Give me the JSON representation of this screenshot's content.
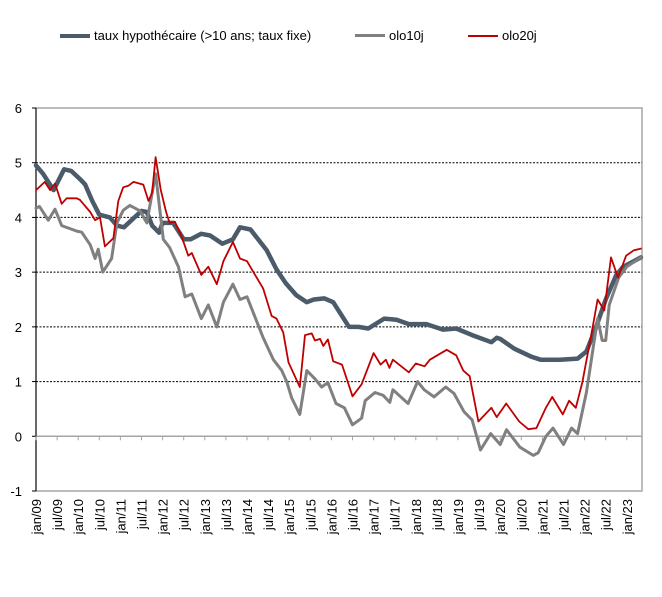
{
  "chart_data": {
    "type": "line",
    "title": "",
    "xlabel": "",
    "ylabel": "",
    "x_unit": "months since jan/09",
    "ylim": [
      -1,
      6
    ],
    "yticks": [
      -1,
      0,
      1,
      2,
      3,
      4,
      5,
      6
    ],
    "xticks": [
      "jan/09",
      "jul/09",
      "jan/10",
      "jul/10",
      "jan/11",
      "jul/11",
      "jan/12",
      "jul/12",
      "jan/13",
      "jul/13",
      "jan/14",
      "jul/14",
      "jan/15",
      "jul/15",
      "jan/16",
      "jul/16",
      "jan/17",
      "jul/17",
      "jan/18",
      "jul/18",
      "jan/19",
      "jul/19",
      "jan/20",
      "jul/20",
      "jan/21",
      "jul/21",
      "jan/22",
      "jul/22",
      "jan/23"
    ],
    "xlim": [
      0,
      172
    ],
    "grid": "horizontal dashed",
    "legend_position": "top",
    "series": [
      {
        "name": "taux hypothécaire (>10 ans; taux fixe)",
        "color": "#4b5b69",
        "points": [
          [
            0,
            4.95
          ],
          [
            2,
            4.8
          ],
          [
            5,
            4.5
          ],
          [
            8,
            4.88
          ],
          [
            10,
            4.85
          ],
          [
            12.5,
            4.7
          ],
          [
            14,
            4.6
          ],
          [
            16,
            4.3
          ],
          [
            18,
            4.05
          ],
          [
            21,
            4.0
          ],
          [
            23,
            3.85
          ],
          [
            25,
            3.82
          ],
          [
            28,
            4.0
          ],
          [
            30,
            4.12
          ],
          [
            31.5,
            4.1
          ],
          [
            33,
            3.85
          ],
          [
            35,
            3.72
          ],
          [
            36,
            3.9
          ],
          [
            39,
            3.9
          ],
          [
            42,
            3.6
          ],
          [
            44,
            3.6
          ],
          [
            47,
            3.7
          ],
          [
            49.5,
            3.67
          ],
          [
            53,
            3.52
          ],
          [
            56,
            3.6
          ],
          [
            58,
            3.82
          ],
          [
            61,
            3.78
          ],
          [
            65.6,
            3.4
          ],
          [
            68.4,
            3.05
          ],
          [
            71,
            2.8
          ],
          [
            74,
            2.58
          ],
          [
            77,
            2.45
          ],
          [
            79,
            2.5
          ],
          [
            82,
            2.52
          ],
          [
            84.5,
            2.45
          ],
          [
            89,
            2.0
          ],
          [
            91.7,
            2.0
          ],
          [
            94.5,
            1.97
          ],
          [
            99,
            2.15
          ],
          [
            102.5,
            2.13
          ],
          [
            106,
            2.05
          ],
          [
            111,
            2.05
          ],
          [
            115.7,
            1.95
          ],
          [
            119.5,
            1.97
          ],
          [
            124,
            1.85
          ],
          [
            129.5,
            1.72
          ],
          [
            131,
            1.8
          ],
          [
            132,
            1.78
          ],
          [
            136,
            1.6
          ],
          [
            141,
            1.45
          ],
          [
            143.5,
            1.4
          ],
          [
            149,
            1.4
          ],
          [
            154,
            1.42
          ],
          [
            156.5,
            1.55
          ],
          [
            159,
            1.95
          ],
          [
            162,
            2.5
          ],
          [
            165,
            2.95
          ],
          [
            167,
            3.1
          ],
          [
            170,
            3.2
          ],
          [
            172,
            3.27
          ]
        ]
      },
      {
        "name": "olo10j",
        "color": "#808080",
        "points": [
          [
            0,
            4.17
          ],
          [
            1,
            4.2
          ],
          [
            3.5,
            3.95
          ],
          [
            5.4,
            4.15
          ],
          [
            7.3,
            3.85
          ],
          [
            11.6,
            3.75
          ],
          [
            13,
            3.73
          ],
          [
            15.4,
            3.5
          ],
          [
            16.8,
            3.25
          ],
          [
            17.7,
            3.42
          ],
          [
            19,
            3.0
          ],
          [
            21.5,
            3.25
          ],
          [
            23,
            3.9
          ],
          [
            24.8,
            4.13
          ],
          [
            26.7,
            4.22
          ],
          [
            29.6,
            4.12
          ],
          [
            31.5,
            3.9
          ],
          [
            34,
            4.8
          ],
          [
            36.2,
            3.6
          ],
          [
            38,
            3.45
          ],
          [
            40.5,
            3.1
          ],
          [
            42.4,
            2.55
          ],
          [
            44.3,
            2.6
          ],
          [
            47,
            2.15
          ],
          [
            49,
            2.4
          ],
          [
            51.4,
            2.0
          ],
          [
            53.3,
            2.45
          ],
          [
            56,
            2.78
          ],
          [
            58,
            2.5
          ],
          [
            60,
            2.55
          ],
          [
            64.6,
            1.8
          ],
          [
            67.5,
            1.4
          ],
          [
            69.9,
            1.2
          ],
          [
            71.3,
            1.0
          ],
          [
            72.7,
            0.7
          ],
          [
            75,
            0.4
          ],
          [
            77,
            1.2
          ],
          [
            79.3,
            1.05
          ],
          [
            81.2,
            0.9
          ],
          [
            83,
            0.98
          ],
          [
            85.3,
            0.6
          ],
          [
            87.7,
            0.52
          ],
          [
            90,
            0.21
          ],
          [
            92.6,
            0.33
          ],
          [
            93.6,
            0.65
          ],
          [
            96.4,
            0.8
          ],
          [
            98.7,
            0.75
          ],
          [
            100.6,
            0.62
          ],
          [
            101.5,
            0.85
          ],
          [
            105.8,
            0.6
          ],
          [
            108.5,
            1.0
          ],
          [
            110.4,
            0.85
          ],
          [
            113.2,
            0.72
          ],
          [
            116.5,
            0.9
          ],
          [
            118.9,
            0.78
          ],
          [
            121.7,
            0.45
          ],
          [
            124,
            0.3
          ],
          [
            126.4,
            -0.25
          ],
          [
            129.3,
            0.05
          ],
          [
            132,
            -0.15
          ],
          [
            133.8,
            0.12
          ],
          [
            137.6,
            -0.2
          ],
          [
            141.4,
            -0.35
          ],
          [
            142.8,
            -0.3
          ],
          [
            145,
            0.0
          ],
          [
            147,
            0.15
          ],
          [
            150,
            -0.15
          ],
          [
            152.3,
            0.15
          ],
          [
            154,
            0.05
          ],
          [
            156.5,
            0.8
          ],
          [
            159.7,
            2.15
          ],
          [
            161,
            1.75
          ],
          [
            162,
            1.75
          ],
          [
            163,
            2.4
          ],
          [
            165.7,
            2.9
          ],
          [
            168,
            3.1
          ],
          [
            172,
            3.27
          ]
        ]
      },
      {
        "name": "olo20j",
        "color": "#c00000",
        "points": [
          [
            0,
            4.5
          ],
          [
            2.5,
            4.65
          ],
          [
            4,
            4.5
          ],
          [
            5.4,
            4.62
          ],
          [
            7.3,
            4.25
          ],
          [
            8.7,
            4.35
          ],
          [
            11.6,
            4.35
          ],
          [
            12.5,
            4.32
          ],
          [
            15.4,
            4.1
          ],
          [
            16.8,
            3.95
          ],
          [
            18.2,
            4.0
          ],
          [
            19.6,
            3.47
          ],
          [
            22,
            3.62
          ],
          [
            23.4,
            4.3
          ],
          [
            24.8,
            4.55
          ],
          [
            26.3,
            4.58
          ],
          [
            27.7,
            4.65
          ],
          [
            30.5,
            4.6
          ],
          [
            32,
            4.3
          ],
          [
            33,
            4.45
          ],
          [
            34,
            5.1
          ],
          [
            35.5,
            4.5
          ],
          [
            37,
            4.1
          ],
          [
            38,
            3.9
          ],
          [
            39.5,
            3.92
          ],
          [
            41.4,
            3.65
          ],
          [
            43.3,
            3.3
          ],
          [
            44.3,
            3.35
          ],
          [
            47,
            2.95
          ],
          [
            49,
            3.1
          ],
          [
            51.4,
            2.78
          ],
          [
            53.3,
            3.2
          ],
          [
            56,
            3.55
          ],
          [
            58,
            3.25
          ],
          [
            60,
            3.2
          ],
          [
            62.3,
            2.95
          ],
          [
            64.6,
            2.7
          ],
          [
            67,
            2.2
          ],
          [
            68.4,
            2.15
          ],
          [
            70.3,
            1.9
          ],
          [
            71.8,
            1.35
          ],
          [
            75,
            0.9
          ],
          [
            76.5,
            1.85
          ],
          [
            78.4,
            1.88
          ],
          [
            79.3,
            1.75
          ],
          [
            80.8,
            1.78
          ],
          [
            81.7,
            1.65
          ],
          [
            83,
            1.77
          ],
          [
            84.5,
            1.37
          ],
          [
            87,
            1.31
          ],
          [
            90,
            0.73
          ],
          [
            92.6,
            0.95
          ],
          [
            96,
            1.52
          ],
          [
            98,
            1.31
          ],
          [
            99.5,
            1.4
          ],
          [
            100.5,
            1.25
          ],
          [
            101.5,
            1.4
          ],
          [
            106,
            1.17
          ],
          [
            108,
            1.33
          ],
          [
            110.5,
            1.28
          ],
          [
            112,
            1.4
          ],
          [
            116.8,
            1.58
          ],
          [
            119.5,
            1.48
          ],
          [
            121.5,
            1.2
          ],
          [
            123.3,
            1.1
          ],
          [
            125.8,
            0.27
          ],
          [
            129.5,
            0.52
          ],
          [
            131,
            0.35
          ],
          [
            133.7,
            0.6
          ],
          [
            137.4,
            0.27
          ],
          [
            140,
            0.13
          ],
          [
            142.3,
            0.15
          ],
          [
            145,
            0.52
          ],
          [
            146.8,
            0.72
          ],
          [
            149.8,
            0.4
          ],
          [
            151.6,
            0.65
          ],
          [
            153.5,
            0.52
          ],
          [
            155.4,
            1.0
          ],
          [
            158.3,
            2.0
          ],
          [
            159.7,
            2.5
          ],
          [
            161.6,
            2.3
          ],
          [
            163.5,
            3.27
          ],
          [
            165.5,
            2.9
          ],
          [
            167.8,
            3.3
          ],
          [
            170,
            3.4
          ],
          [
            172,
            3.43
          ]
        ]
      }
    ]
  }
}
